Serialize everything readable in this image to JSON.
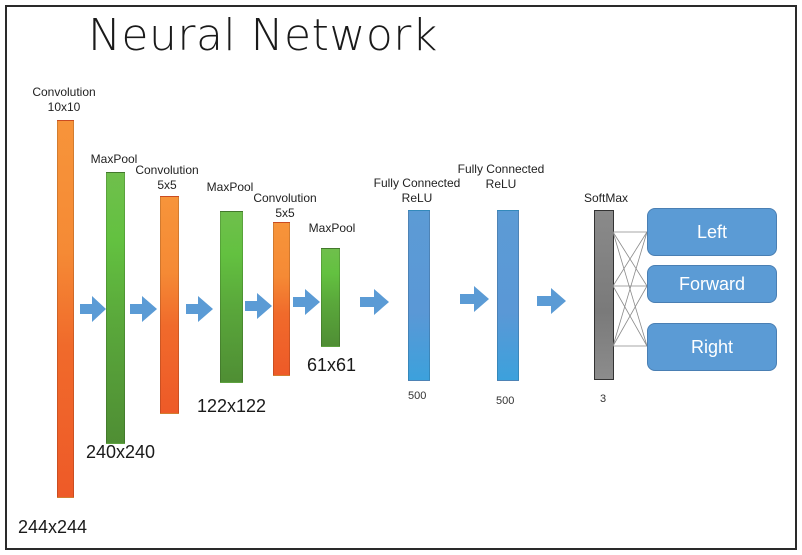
{
  "title": "Neural Network",
  "layers": {
    "conv1": {
      "label_line1": "Convolution",
      "label_line2": "10x10",
      "dim": "244x244"
    },
    "pool1": {
      "label": "MaxPool",
      "dim": "240x240"
    },
    "conv2": {
      "label_line1": "Convolution",
      "label_line2": "5x5"
    },
    "pool2": {
      "label": "MaxPool",
      "dim": "122x122"
    },
    "conv3": {
      "label_line1": "Convolution",
      "label_line2": "5x5"
    },
    "pool3": {
      "label": "MaxPool",
      "dim": "61x61"
    },
    "fc1": {
      "label_line1": "Fully Connected",
      "label_line2": "ReLU",
      "size": "500"
    },
    "fc2": {
      "label_line1": "Fully Connected",
      "label_line2": "ReLU",
      "size": "500"
    },
    "softmax": {
      "label": "SoftMax",
      "size": "3"
    }
  },
  "outputs": [
    "Left",
    "Forward",
    "Right"
  ],
  "colors": {
    "conv": "#f58a35",
    "pool": "#5aa83b",
    "fully_connected": "#5b9bd5",
    "softmax": "#808080",
    "output_box": "#5b9bd5",
    "arrow": "#5b9bd5"
  }
}
